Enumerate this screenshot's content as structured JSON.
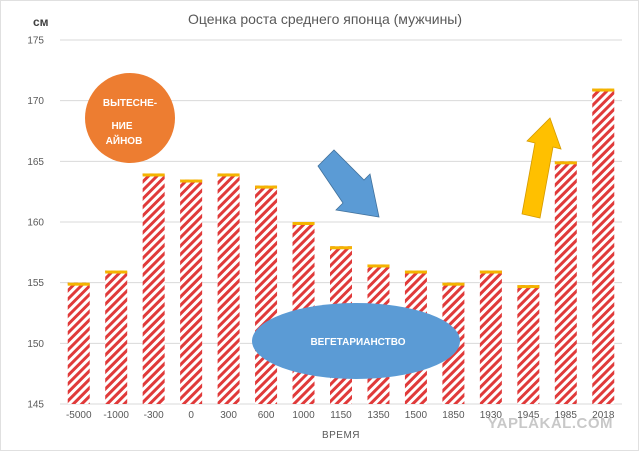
{
  "chart_data": {
    "type": "bar",
    "title": "Оценка роста среднего японца (мужчины)",
    "unit_label": "см",
    "xlabel": "ВРЕМЯ",
    "ylabel": "",
    "ylim": [
      145,
      175
    ],
    "yticks": [
      145,
      150,
      155,
      160,
      165,
      170,
      175
    ],
    "categories": [
      "-5000",
      "-1000",
      "-300",
      "0",
      "300",
      "600",
      "1000",
      "1150",
      "1350",
      "1500",
      "1850",
      "1930",
      "1945",
      "1985",
      "2018"
    ],
    "values": [
      155,
      156,
      164,
      163.5,
      164,
      163,
      160,
      158,
      156.5,
      156,
      155,
      156,
      154.8,
      165,
      171
    ],
    "grid": true,
    "legend": "none",
    "colors": {
      "bar_hatch": "#e03a3a",
      "bar_cap": "#f4b400",
      "grid": "#d9d9d9",
      "circle_orange": "#ed7d31",
      "ellipse_blue": "#5b9bd5",
      "arrow_blue": "#5b9bd5",
      "arrow_yellow": "#ffc000"
    },
    "annotations": [
      {
        "name": "ainu-displacement",
        "lines": [
          "ВЫТЕСНЕ-",
          "НИЕ",
          "АЙНОВ"
        ]
      },
      {
        "name": "vegetarianism",
        "lines": [
          "ВЕГЕТАРИАНСТВО"
        ]
      }
    ]
  },
  "watermark": "YAPLAKAL.COM"
}
